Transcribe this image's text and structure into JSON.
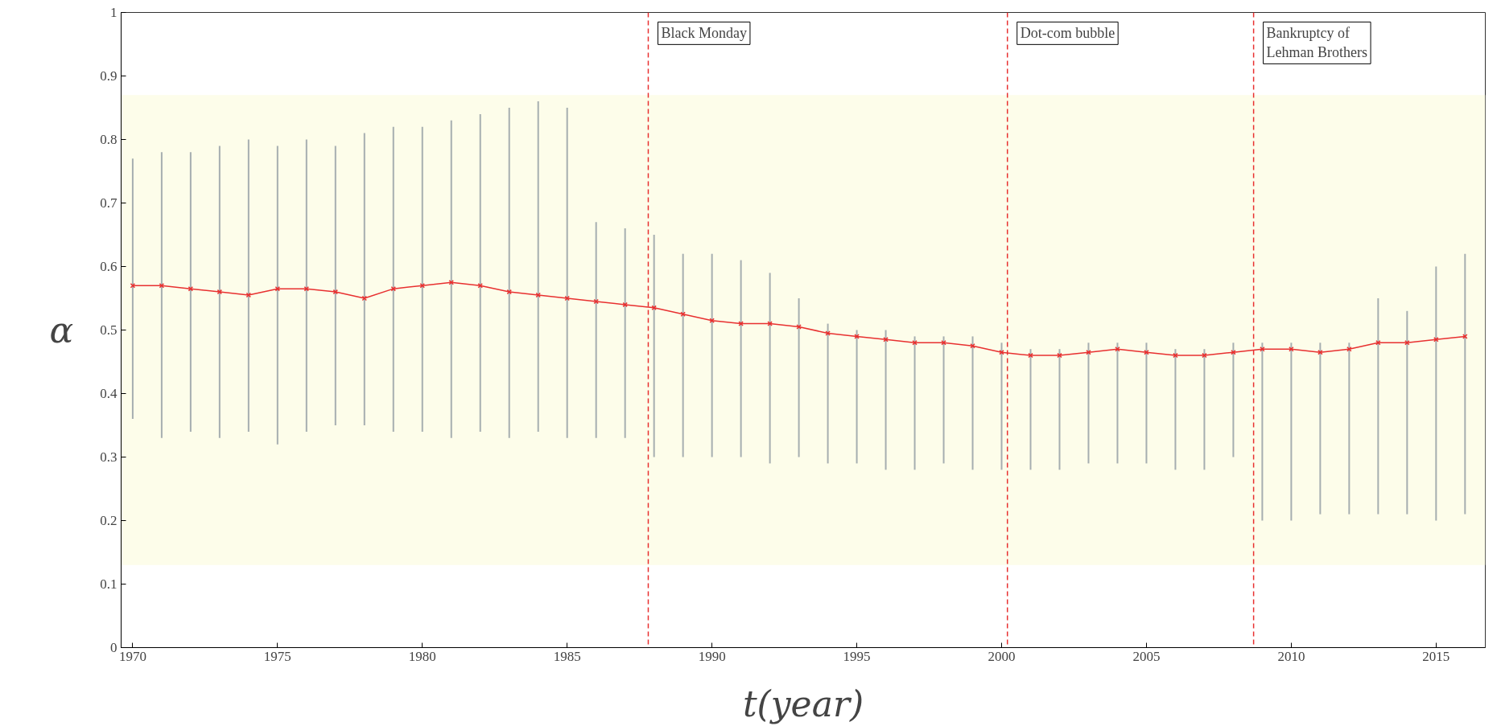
{
  "chart_data": {
    "type": "line",
    "xlabel": "t(year)",
    "ylabel": "α",
    "x": [
      1970,
      1971,
      1972,
      1973,
      1974,
      1975,
      1976,
      1977,
      1978,
      1979,
      1980,
      1981,
      1982,
      1983,
      1984,
      1985,
      1986,
      1987,
      1988,
      1989,
      1990,
      1991,
      1992,
      1993,
      1994,
      1995,
      1996,
      1997,
      1998,
      1999,
      2000,
      2001,
      2002,
      2003,
      2004,
      2005,
      2006,
      2007,
      2008,
      2009,
      2010,
      2011,
      2012,
      2013,
      2014,
      2015,
      2016
    ],
    "series": [
      {
        "color": "#e83030",
        "values": [
          0.57,
          0.57,
          0.565,
          0.56,
          0.555,
          0.565,
          0.565,
          0.56,
          0.55,
          0.565,
          0.57,
          0.575,
          0.57,
          0.56,
          0.555,
          0.55,
          0.545,
          0.54,
          0.535,
          0.525,
          0.515,
          0.51,
          0.51,
          0.505,
          0.495,
          0.49,
          0.485,
          0.48,
          0.48,
          0.475,
          0.465,
          0.46,
          0.46,
          0.465,
          0.47,
          0.465,
          0.46,
          0.46,
          0.465,
          0.47,
          0.47,
          0.465,
          0.47,
          0.48,
          0.48,
          0.485,
          0.49
        ],
        "errors": [
          [
            0.36,
            0.77
          ],
          [
            0.33,
            0.78
          ],
          [
            0.34,
            0.78
          ],
          [
            0.33,
            0.79
          ],
          [
            0.34,
            0.8
          ],
          [
            0.32,
            0.79
          ],
          [
            0.34,
            0.8
          ],
          [
            0.35,
            0.79
          ],
          [
            0.35,
            0.81
          ],
          [
            0.34,
            0.82
          ],
          [
            0.34,
            0.82
          ],
          [
            0.33,
            0.83
          ],
          [
            0.34,
            0.84
          ],
          [
            0.33,
            0.85
          ],
          [
            0.34,
            0.86
          ],
          [
            0.33,
            0.85
          ],
          [
            0.33,
            0.67
          ],
          [
            0.33,
            0.66
          ],
          [
            0.3,
            0.65
          ],
          [
            0.3,
            0.62
          ],
          [
            0.3,
            0.62
          ],
          [
            0.3,
            0.61
          ],
          [
            0.29,
            0.59
          ],
          [
            0.3,
            0.55
          ],
          [
            0.29,
            0.51
          ],
          [
            0.29,
            0.5
          ],
          [
            0.28,
            0.5
          ],
          [
            0.28,
            0.49
          ],
          [
            0.29,
            0.49
          ],
          [
            0.28,
            0.49
          ],
          [
            0.28,
            0.48
          ],
          [
            0.28,
            0.47
          ],
          [
            0.28,
            0.47
          ],
          [
            0.29,
            0.48
          ],
          [
            0.29,
            0.48
          ],
          [
            0.29,
            0.48
          ],
          [
            0.28,
            0.47
          ],
          [
            0.28,
            0.47
          ],
          [
            0.3,
            0.48
          ],
          [
            0.2,
            0.48
          ],
          [
            0.2,
            0.48
          ],
          [
            0.21,
            0.48
          ],
          [
            0.21,
            0.48
          ],
          [
            0.21,
            0.55
          ],
          [
            0.21,
            0.53
          ],
          [
            0.2,
            0.6
          ],
          [
            0.21,
            0.62
          ]
        ]
      }
    ],
    "xlim": [
      1969.6,
      2016.7
    ],
    "xticks": [
      1970,
      1975,
      1980,
      1985,
      1990,
      1995,
      2000,
      2005,
      2010,
      2015
    ],
    "ylim": [
      0,
      1
    ],
    "yticks": [
      0,
      0.1,
      0.2,
      0.3,
      0.4,
      0.5,
      0.6,
      0.7,
      0.8,
      0.9,
      1
    ],
    "bands": [
      {
        "axis": "y",
        "from": 0.13,
        "to": 0.87,
        "color": "#fdfdea"
      }
    ],
    "ref_lines": [
      {
        "axis": "x",
        "value": 1987.8,
        "label": "Black Monday",
        "color": "#e83030",
        "line_style": "dashed"
      },
      {
        "axis": "x",
        "value": 2000.2,
        "label": "Dot-com bubble",
        "color": "#e83030",
        "line_style": "dashed"
      },
      {
        "axis": "x",
        "value": 2008.7,
        "label": "Bankruptcy of Lehman Brothers",
        "color": "#e83030",
        "line_style": "dashed"
      }
    ],
    "marker": "cross",
    "grid": false
  }
}
